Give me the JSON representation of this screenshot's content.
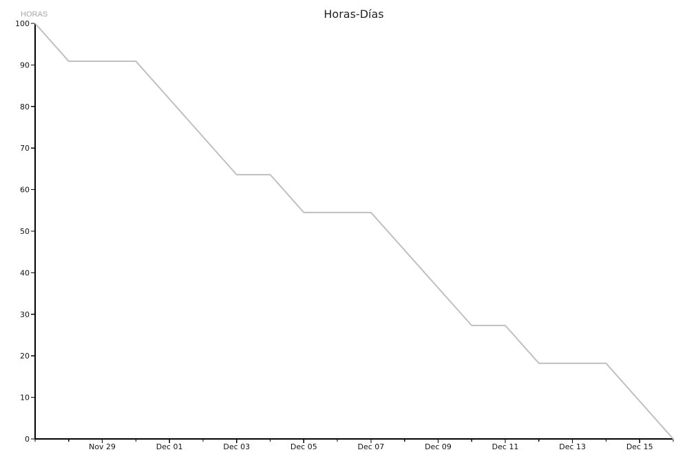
{
  "chart_data": {
    "type": "line",
    "title": "Horas-Días",
    "ylabel": "HORAS",
    "xlabel": "",
    "ylim": [
      0,
      100
    ],
    "yticks": [
      0,
      10,
      20,
      30,
      40,
      50,
      60,
      70,
      80,
      90,
      100
    ],
    "xlim": [
      "2014-11-27",
      "2014-12-16"
    ],
    "xticks": [
      {
        "date": "2014-11-29",
        "label": "Nov 29"
      },
      {
        "date": "2014-12-01",
        "label": "Dec 01"
      },
      {
        "date": "2014-12-03",
        "label": "Dec 03"
      },
      {
        "date": "2014-12-05",
        "label": "Dec 05"
      },
      {
        "date": "2014-12-07",
        "label": "Dec 07"
      },
      {
        "date": "2014-12-09",
        "label": "Dec 09"
      },
      {
        "date": "2014-12-11",
        "label": "Dec 11"
      },
      {
        "date": "2014-12-13",
        "label": "Dec 13"
      },
      {
        "date": "2014-12-15",
        "label": "Dec 15"
      }
    ],
    "grid": false,
    "series": [
      {
        "color": "#bfbfbf",
        "points": [
          {
            "x": "2014-11-27",
            "y": 100
          },
          {
            "x": "2014-11-28",
            "y": 90.9
          },
          {
            "x": "2014-11-30",
            "y": 90.9
          },
          {
            "x": "2014-12-03",
            "y": 63.6
          },
          {
            "x": "2014-12-04",
            "y": 63.6
          },
          {
            "x": "2014-12-05",
            "y": 54.5
          },
          {
            "x": "2014-12-07",
            "y": 54.5
          },
          {
            "x": "2014-12-10",
            "y": 27.3
          },
          {
            "x": "2014-12-11",
            "y": 27.3
          },
          {
            "x": "2014-12-12",
            "y": 18.2
          },
          {
            "x": "2014-12-14",
            "y": 18.2
          },
          {
            "x": "2014-12-16",
            "y": 0
          }
        ]
      }
    ]
  }
}
